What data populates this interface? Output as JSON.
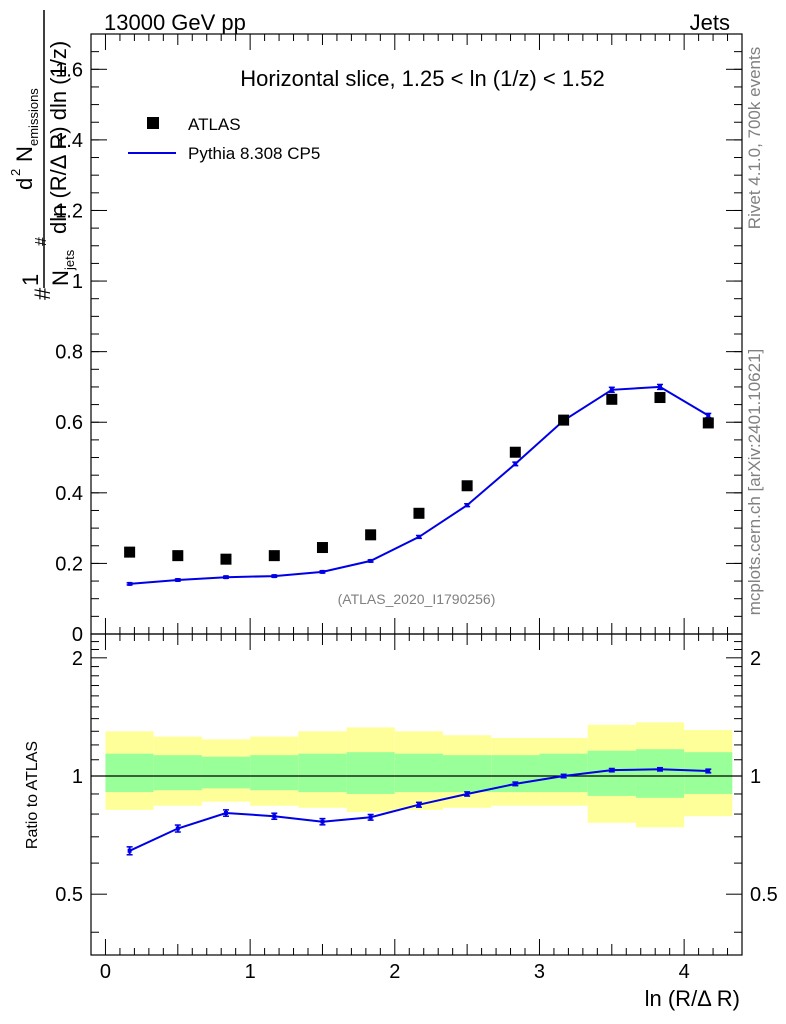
{
  "header": {
    "left": "13000 GeV pp",
    "right": "Jets",
    "side_label": "Rivet 4.1.0,  700k events",
    "side_label2": "mcplots.cern.ch [arXiv:2401.10621]"
  },
  "chart_data": [
    {
      "type": "scatter",
      "panel": "main",
      "title": "Horizontal slice, 1.25 < ln (1/z) < 1.52",
      "watermark": "(ATLAS_2020_I1790256)",
      "ylabel_parts": {
        "hash1": "#",
        "one": "1",
        "njets_N": "N",
        "njets_sub": "jets",
        "hash2": "#",
        "d2": "d",
        "d2_sup": "2",
        "n_em": "N",
        "n_em_sub": "emissions",
        "denominator": "dln (R/Δ R) dln (1/z)"
      },
      "xlim": [
        -0.1,
        4.4
      ],
      "ylim": [
        0,
        1.7
      ],
      "yticks": [
        0,
        0.2,
        0.4,
        0.6,
        0.8,
        1,
        1.2,
        1.4,
        1.6
      ],
      "ytick_labels": [
        "0",
        "0.2",
        "0.4",
        "0.6",
        "0.8",
        "1",
        "1.2",
        "1.4",
        "1.6"
      ],
      "x": [
        0.167,
        0.5,
        0.833,
        1.167,
        1.5,
        1.833,
        2.167,
        2.5,
        2.833,
        3.167,
        3.5,
        3.833,
        4.167
      ],
      "series": [
        {
          "name": "ATLAS",
          "marker": "square",
          "color": "#000000",
          "values": [
            0.232,
            0.222,
            0.212,
            0.222,
            0.245,
            0.281,
            0.342,
            0.42,
            0.515,
            0.606,
            0.665,
            0.67,
            0.598
          ]
        },
        {
          "name": "Pythia 8.308 CP5",
          "marker": "line",
          "color": "#0000e6",
          "values": [
            0.142,
            0.153,
            0.161,
            0.164,
            0.176,
            0.207,
            0.275,
            0.365,
            0.482,
            0.605,
            0.692,
            0.7,
            0.619
          ],
          "errors": [
            0.003,
            0.003,
            0.003,
            0.003,
            0.003,
            0.003,
            0.004,
            0.004,
            0.005,
            0.006,
            0.007,
            0.007,
            0.006
          ]
        }
      ]
    },
    {
      "type": "line",
      "panel": "ratio",
      "ylabel": "Ratio to ATLAS",
      "xlabel": "ln (R/Δ R)",
      "xlim": [
        -0.1,
        4.4
      ],
      "ylim": [
        0.35,
        2.3
      ],
      "yticks": [
        0.5,
        1,
        2
      ],
      "ytick_labels": [
        "0.5",
        "1",
        "2"
      ],
      "xticks": [
        0,
        1,
        2,
        3,
        4
      ],
      "xtick_labels": [
        "0",
        "1",
        "2",
        "3",
        "4"
      ],
      "bin_edges": [
        0,
        0.333,
        0.667,
        1,
        1.333,
        1.667,
        2,
        2.333,
        2.667,
        3,
        3.333,
        3.667,
        4,
        4.333
      ],
      "band_inner": {
        "color": "#99ff99",
        "lo": [
          0.91,
          0.92,
          0.93,
          0.92,
          0.91,
          0.9,
          0.91,
          0.91,
          0.91,
          0.91,
          0.89,
          0.88,
          0.9
        ],
        "hi": [
          1.14,
          1.13,
          1.12,
          1.13,
          1.14,
          1.15,
          1.14,
          1.13,
          1.13,
          1.14,
          1.16,
          1.17,
          1.15
        ]
      },
      "band_outer": {
        "color": "#ffff99",
        "lo": [
          0.82,
          0.84,
          0.86,
          0.84,
          0.83,
          0.81,
          0.82,
          0.83,
          0.84,
          0.84,
          0.76,
          0.74,
          0.79
        ],
        "hi": [
          1.3,
          1.26,
          1.24,
          1.26,
          1.3,
          1.33,
          1.3,
          1.27,
          1.25,
          1.25,
          1.35,
          1.37,
          1.31
        ]
      },
      "series": [
        {
          "name": "Pythia 8.308 CP5",
          "color": "#0000e6",
          "values": [
            0.645,
            0.735,
            0.805,
            0.79,
            0.765,
            0.785,
            0.845,
            0.9,
            0.955,
            1.0,
            1.035,
            1.04,
            1.03
          ],
          "errors": [
            0.015,
            0.015,
            0.015,
            0.014,
            0.014,
            0.013,
            0.012,
            0.011,
            0.01,
            0.01,
            0.01,
            0.01,
            0.011
          ]
        }
      ]
    }
  ]
}
